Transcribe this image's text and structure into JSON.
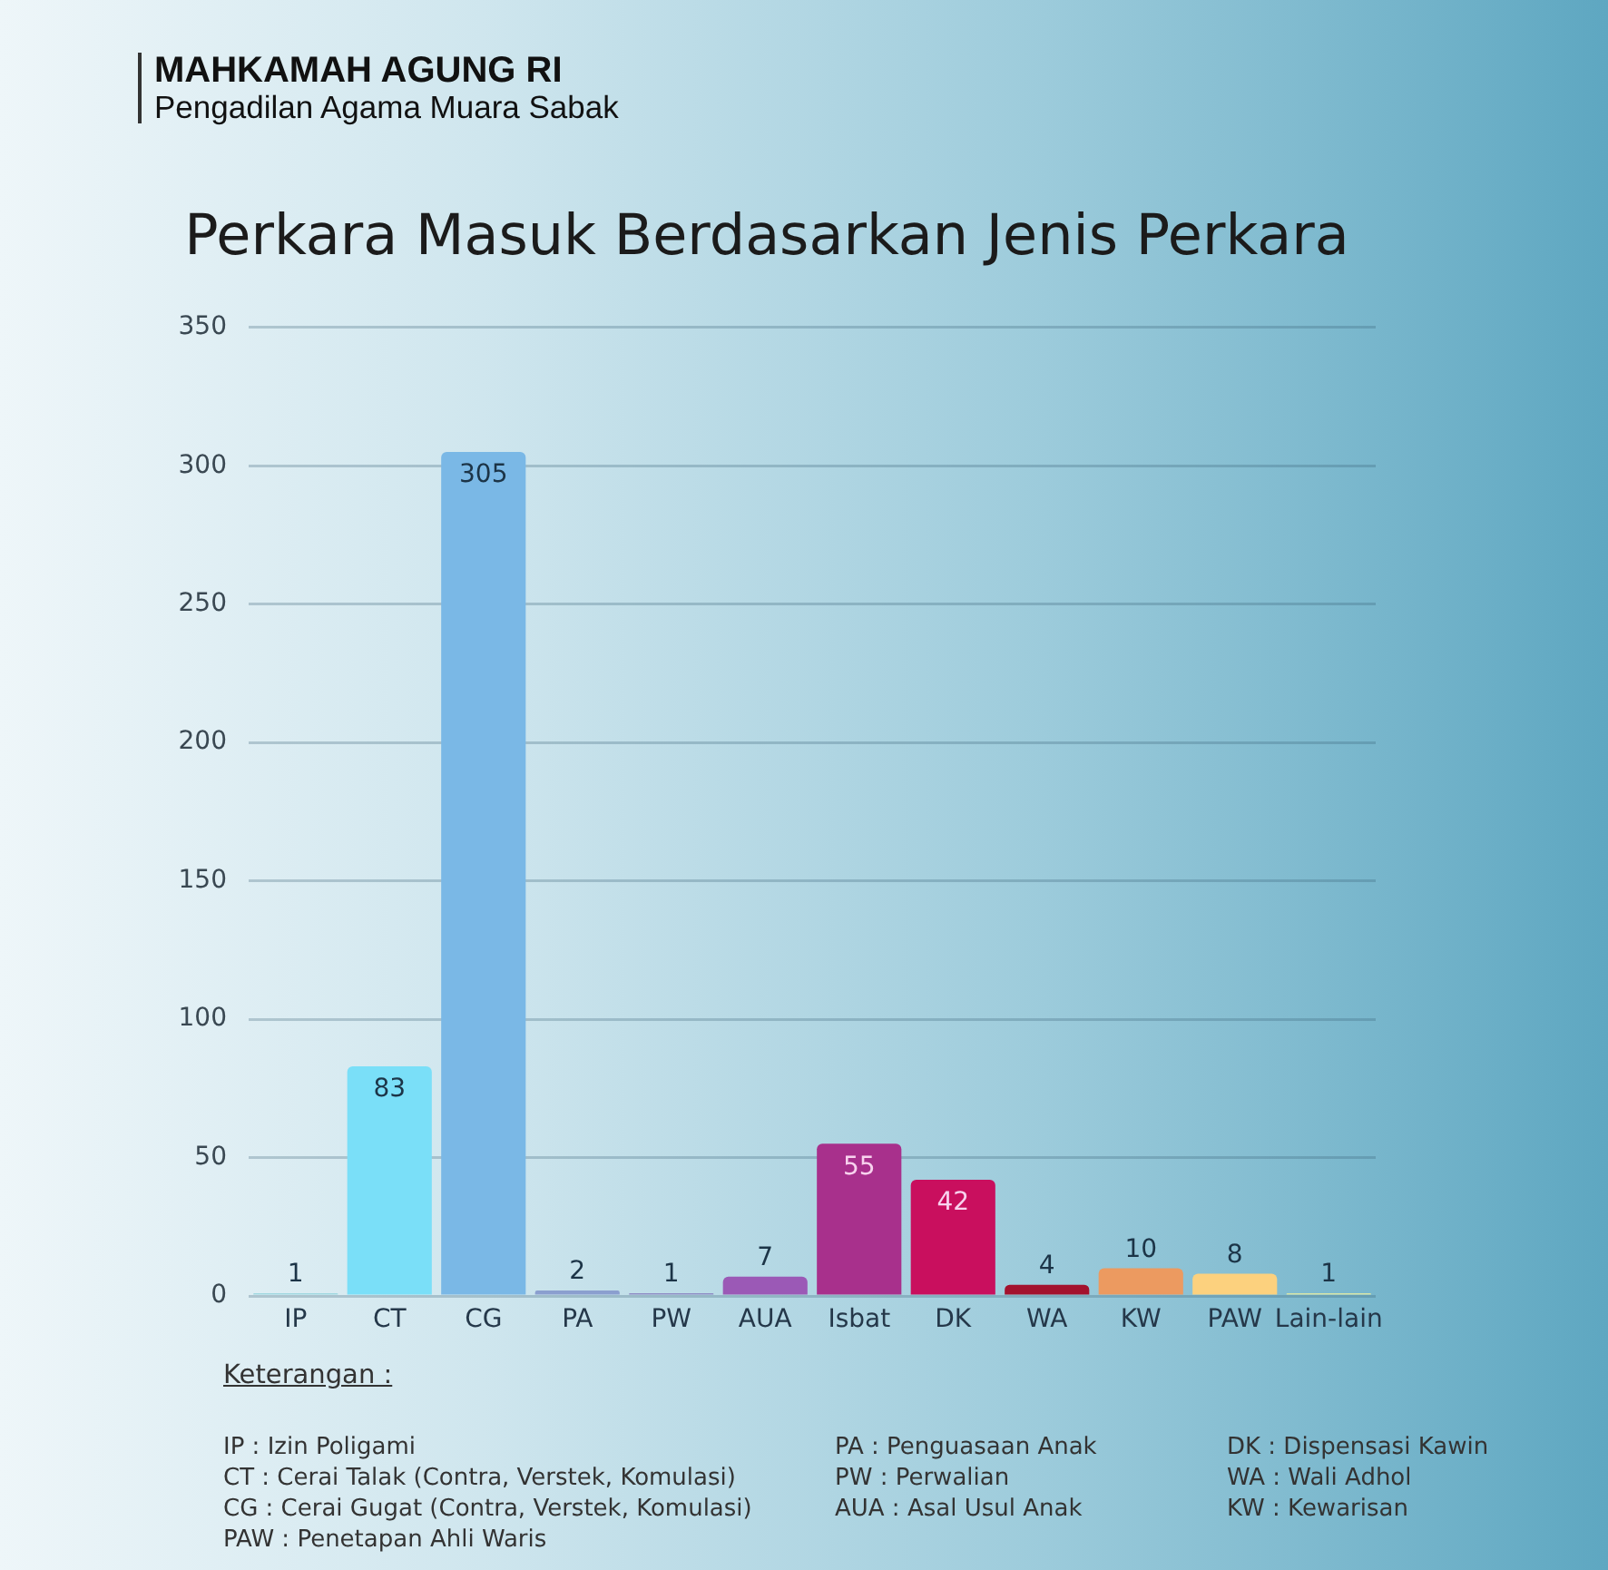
{
  "chart_data": {
    "type": "bar",
    "title": "Perkara Masuk Berdasarkan Jenis Perkara",
    "categories": [
      "IP",
      "CT",
      "CG",
      "PA",
      "PW",
      "AUA",
      "Isbat",
      "DK",
      "WA",
      "KW",
      "PAW",
      "Lain-lain"
    ],
    "values": [
      1,
      83,
      305,
      2,
      1,
      7,
      55,
      42,
      4,
      10,
      8,
      1
    ],
    "colors": [
      "#9fd8e0",
      "#7adff8",
      "#7ab8e6",
      "#8b9fcf",
      "#8e8cc4",
      "#9b59b6",
      "#a8308c",
      "#c90f5e",
      "#a3122e",
      "#ec9a60",
      "#fcd17e",
      "#d7e5a8"
    ],
    "ylim": [
      0,
      350
    ],
    "yticks": [
      0,
      50,
      100,
      150,
      200,
      250,
      300,
      350
    ],
    "grid": "y",
    "legend": false,
    "data_labels": true,
    "annotations": [
      "MAHKAMAH AGUNG RI",
      "Pengadilan Agama Muara Sabak",
      "Keterangan :",
      "IP : Izin Poligami",
      "PA : Penguasaan Anak",
      "DK : Dispensasi Kawin",
      "CT : Cerai Talak (Contra, Verstek, Komulasi)",
      "PW : Perwalian",
      "WA : Wali Adhol",
      "CG : Cerai Gugat (Contra, Verstek, Komulasi)",
      "AUA : Asal Usul Anak",
      "KW : Kewarisan",
      "PAW : Penetapan Ahli Waris"
    ]
  }
}
